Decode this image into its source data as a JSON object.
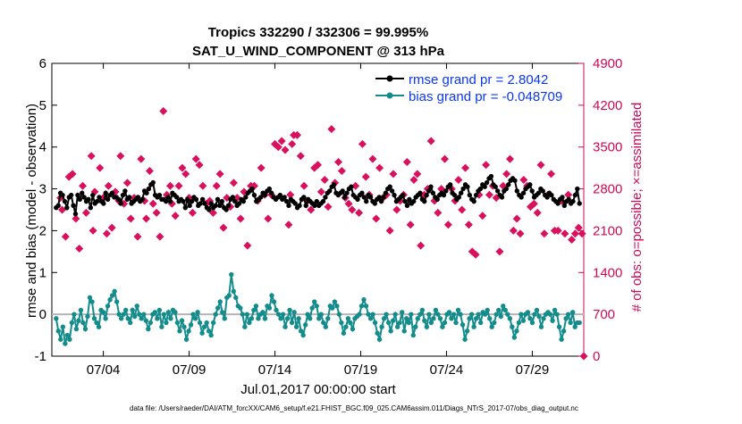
{
  "chart_data": {
    "type": "line",
    "title": "Tropics 332290 / 332306 = 99.995%",
    "subtitle": "SAT_U_WIND_COMPONENT @ 313 hPa",
    "xlabel": "Jul.01,2017 00:00:00 start",
    "ylabel": "rmse and bias (model - observation)",
    "ylabel_right": "# of obs: o=possible; ×=assimilated",
    "footer": "data file: /Users/raeder/DAI/ATM_forcXX/CAM6_setup/f.e21.FHIST_BGC.f09_025.CAM6assim.011/Diags_NTrS_2017-07/obs_diag_output.nc",
    "xlim": [
      0.5,
      31.5
    ],
    "ylim": [
      -1,
      6
    ],
    "ylim_right": [
      0,
      4900
    ],
    "x_ticks": [
      3.5,
      8.5,
      13.5,
      18.5,
      23.5,
      28.5
    ],
    "x_tick_labels": [
      "07/04",
      "07/09",
      "07/14",
      "07/19",
      "07/24",
      "07/29"
    ],
    "y_ticks": [
      -1,
      0,
      1,
      2,
      3,
      4,
      5,
      6
    ],
    "y_ticks_right": [
      0,
      700,
      1400,
      2100,
      2800,
      3500,
      4200,
      4900
    ],
    "zero_line": 0,
    "legend_position": "top-right",
    "series": [
      {
        "name": "rmse grand pr = 2.8042",
        "color": "#000000",
        "values": [
          2.55,
          2.6,
          2.9,
          2.85,
          2.7,
          2.55,
          2.8,
          2.85,
          2.6,
          2.4,
          2.85,
          2.75,
          2.9,
          2.8,
          2.7,
          2.75,
          2.55,
          2.85,
          2.65,
          2.7,
          2.8,
          2.7,
          2.65,
          2.9,
          2.75,
          2.85,
          2.9,
          2.8,
          2.8,
          2.75,
          2.65,
          2.85,
          2.95,
          2.75,
          2.8,
          2.65,
          2.7,
          2.75,
          2.8,
          2.7,
          2.75,
          2.95,
          2.9,
          3.0,
          3.1,
          3.15,
          2.85,
          2.8,
          2.85,
          2.75,
          2.75,
          2.7,
          2.8,
          2.7,
          2.9,
          2.85,
          2.8,
          2.7,
          2.75,
          2.7,
          2.55,
          2.75,
          2.6,
          2.7,
          2.8,
          2.75,
          2.6,
          2.65,
          2.75,
          2.65,
          2.55,
          2.5,
          2.65,
          2.55,
          2.6,
          2.75,
          2.6,
          2.7,
          2.55,
          2.5,
          2.6,
          2.75,
          2.8,
          2.7,
          2.6,
          2.65,
          2.75,
          2.7,
          2.8,
          2.9,
          2.95,
          3.0,
          2.85,
          2.7,
          2.75,
          2.8,
          2.9,
          2.85,
          2.95,
          3.0,
          2.9,
          2.8,
          2.75,
          2.8,
          2.85,
          2.75,
          2.8,
          2.7,
          2.6,
          2.75,
          2.7,
          2.65,
          2.55,
          2.6,
          2.75,
          2.8,
          2.6,
          2.75,
          2.7,
          2.65,
          2.6,
          2.7,
          2.6,
          2.65,
          2.7,
          2.8,
          2.9,
          2.95,
          3.05,
          3.1,
          2.9,
          2.85,
          2.9,
          2.95,
          2.8,
          2.9,
          3.0,
          3.05,
          2.85,
          2.8,
          2.75,
          2.85,
          2.9,
          2.8,
          2.7,
          2.85,
          2.8,
          2.7,
          2.65,
          2.75,
          2.8,
          2.7,
          2.8,
          2.9,
          3.0,
          3.05,
          2.95,
          2.85,
          2.7,
          2.75,
          2.8,
          2.85,
          2.7,
          2.6,
          2.75,
          2.65,
          2.7,
          2.8,
          2.85,
          2.9,
          2.75,
          2.7,
          2.85,
          2.95,
          3.05,
          2.9,
          2.8,
          2.75,
          2.85,
          2.9,
          2.85,
          2.95,
          3.05,
          3.1,
          2.9,
          2.85,
          2.75,
          2.8,
          2.9,
          3.0,
          3.1,
          3.05,
          2.85,
          2.75,
          2.7,
          2.85,
          2.95,
          3.0,
          3.1,
          3.05,
          3.15,
          3.25,
          3.3,
          3.1,
          3.05,
          2.95,
          2.85,
          2.8,
          2.95,
          3.0,
          3.1,
          3.2,
          3.25,
          3.2,
          2.95,
          2.85,
          2.8,
          2.9,
          3.0,
          3.05,
          3.1,
          2.95,
          2.8,
          2.85,
          2.9,
          3.0,
          2.95,
          2.85,
          2.8,
          2.9,
          2.85,
          2.75,
          2.7,
          2.65,
          2.75,
          2.8,
          2.6,
          2.7,
          2.75,
          2.65,
          2.7,
          2.85,
          3.0,
          2.65
        ]
      },
      {
        "name": "bias grand pr = -0.048709",
        "color": "#148c8c",
        "values": [
          -0.1,
          -0.4,
          -0.6,
          -0.3,
          -0.7,
          -0.5,
          -0.6,
          -0.2,
          0.0,
          -0.35,
          -0.15,
          0.1,
          -0.2,
          -0.35,
          -0.05,
          0.4,
          0.3,
          -0.1,
          -0.2,
          -0.3,
          0.1,
          0.05,
          -0.1,
          0.2,
          0.35,
          0.45,
          0.55,
          0.3,
          0.0,
          -0.1,
          0.0,
          0.1,
          -0.1,
          -0.2,
          0.1,
          -0.05,
          0.2,
          0.0,
          -0.1,
          0.0,
          -0.15,
          -0.35,
          -0.2,
          0.0,
          0.05,
          -0.1,
          0.1,
          -0.3,
          0.0,
          -0.2,
          0.05,
          -0.1,
          0.1,
          0.05,
          -0.2,
          -0.4,
          -0.15,
          -0.3,
          -0.6,
          -0.4,
          -0.25,
          0.0,
          -0.1,
          0.05,
          -0.2,
          -0.45,
          -0.3,
          -0.2,
          -0.4,
          -0.5,
          -0.2,
          0.0,
          0.15,
          0.3,
          0.05,
          -0.1,
          0.4,
          0.45,
          0.95,
          0.55,
          0.4,
          0.2,
          0.15,
          0.0,
          -0.3,
          0.0,
          -0.2,
          -0.1,
          0.1,
          0.2,
          -0.1,
          0.0,
          0.05,
          -0.1,
          0.2,
          0.15,
          0.45,
          0.3,
          0.1,
          0.0,
          -0.1,
          0.0,
          -0.3,
          -0.1,
          0.1,
          -0.2,
          0.05,
          -0.3,
          -0.1,
          -0.4,
          -0.5,
          -0.25,
          0.0,
          -0.1,
          0.15,
          0.3,
          0.2,
          -0.1,
          0.0,
          -0.2,
          -0.3,
          -0.1,
          0.2,
          0.15,
          0.3,
          0.2,
          0.0,
          -0.2,
          -0.45,
          -0.3,
          -0.1,
          -0.2,
          -0.35,
          -0.1,
          -0.05,
          0.0,
          0.2,
          0.35,
          0.2,
          0.0,
          -0.1,
          0.0,
          -0.2,
          -0.45,
          -0.6,
          -0.3,
          -0.1,
          0.0,
          -0.2,
          -0.4,
          -0.15,
          0.0,
          -0.3,
          -0.2,
          0.05,
          -0.4,
          -0.1,
          -0.2,
          0.0,
          -0.5,
          -0.3,
          -0.1,
          0.0,
          0.1,
          -0.15,
          -0.3,
          0.0,
          -0.2,
          -0.1,
          0.1,
          0.0,
          -0.1,
          -0.3,
          -0.2,
          0.0,
          0.05,
          -0.1,
          0.0,
          -0.2,
          0.1,
          0.0,
          -0.25,
          -0.6,
          -0.4,
          -0.1,
          0.0,
          -0.3,
          -0.1,
          0.0,
          -0.2,
          0.05,
          0.0,
          0.1,
          -0.1,
          -0.3,
          -0.2,
          0.0,
          0.1,
          -0.05,
          0.2,
          0.1,
          0.0,
          -0.1,
          -0.3,
          -0.55,
          -0.4,
          -0.2,
          0.0,
          -0.15,
          0.0,
          0.05,
          -0.1,
          -0.2,
          0.0,
          0.1,
          -0.05,
          -0.3,
          -0.1,
          0.0,
          0.05,
          0.0,
          -0.15,
          0.1,
          0.0,
          -0.3,
          -0.6,
          -0.4,
          -0.1,
          0.0,
          -0.2,
          0.05,
          -0.3,
          -0.2,
          -0.2
        ]
      }
    ],
    "obs_assimilated": {
      "name": "# obs assimilated",
      "color": "#d9105e",
      "x": [
        1.0,
        1.1,
        1.3,
        1.5,
        1.7,
        1.9,
        2.1,
        2.3,
        2.5,
        2.8,
        2.9,
        3.0,
        3.3,
        3.5,
        3.7,
        3.8,
        4.0,
        4.2,
        4.4,
        4.5,
        4.7,
        4.9,
        5.1,
        5.3,
        5.5,
        5.7,
        5.9,
        6.0,
        6.2,
        6.4,
        6.6,
        6.8,
        7.0,
        7.2,
        7.4,
        7.5,
        7.7,
        7.9,
        8.1,
        8.3,
        8.5,
        8.7,
        8.9,
        9.1,
        9.3,
        9.5,
        9.7,
        9.9,
        10.1,
        10.3,
        10.5,
        10.7,
        10.9,
        11.1,
        11.3,
        11.5,
        11.7,
        11.9,
        12.1,
        12.3,
        12.5,
        12.7,
        12.9,
        13.1,
        13.3,
        13.5,
        13.7,
        13.9,
        14.1,
        14.3,
        14.4,
        14.5,
        14.6,
        14.8,
        15.0,
        15.2,
        15.4,
        15.6,
        15.8,
        16.0,
        16.2,
        16.4,
        16.6,
        16.8,
        17.0,
        17.2,
        17.4,
        17.6,
        17.8,
        18.0,
        18.2,
        18.4,
        18.6,
        18.8,
        19.0,
        19.2,
        19.4,
        19.6,
        19.8,
        20.0,
        20.2,
        20.4,
        20.6,
        20.8,
        21.0,
        21.2,
        21.4,
        21.6,
        21.8,
        22.0,
        22.2,
        22.4,
        22.6,
        22.8,
        23.0,
        23.2,
        23.4,
        23.6,
        23.8,
        24.0,
        24.2,
        24.4,
        24.6,
        24.8,
        25.0,
        25.2,
        25.4,
        25.6,
        25.8,
        26.0,
        26.2,
        26.4,
        26.6,
        26.8,
        27.0,
        27.2,
        27.4,
        27.6,
        27.8,
        28.0,
        28.2,
        28.4,
        28.6,
        28.8,
        29.0,
        29.2,
        29.4,
        29.6,
        29.8,
        30.0,
        30.2,
        30.4,
        30.6,
        30.8,
        31.0,
        31.2,
        31.4
      ],
      "y": [
        2650,
        2450,
        2000,
        3000,
        3050,
        2300,
        1800,
        2850,
        2400,
        3350,
        2100,
        2750,
        3150,
        2650,
        2050,
        2850,
        2150,
        2750,
        2600,
        3350,
        2550,
        2900,
        2300,
        2650,
        2000,
        3300,
        2600,
        2300,
        3100,
        2550,
        2400,
        2000,
        4100,
        2700,
        2850,
        2550,
        2350,
        2850,
        3150,
        3050,
        2650,
        2400,
        3300,
        3200,
        2850,
        2550,
        2600,
        2400,
        2850,
        3050,
        2150,
        2650,
        2500,
        2900,
        2650,
        2300,
        2750,
        1850,
        2850,
        2850,
        2600,
        3150,
        2700,
        2300,
        2700,
        3550,
        3500,
        3600,
        3450,
        2200,
        2700,
        3550,
        3700,
        3700,
        3350,
        2850,
        2600,
        2450,
        3150,
        3200,
        2750,
        2950,
        2500,
        3800,
        2900,
        3250,
        3100,
        2650,
        2550,
        2450,
        2850,
        2400,
        3550,
        3000,
        2700,
        3300,
        2300,
        3150,
        2650,
        2700,
        2100,
        3050,
        2450,
        2600,
        2700,
        3250,
        2200,
        2950,
        3050,
        1850,
        2700,
        2800,
        3600,
        2600,
        2400,
        2800,
        3300,
        2200,
        2800,
        2600,
        2950,
        2450,
        3150,
        2200,
        1750,
        1700,
        2700,
        2350,
        3200,
        2700,
        2850,
        2650,
        1750,
        2850,
        3050,
        3300,
        2100,
        2300,
        2050,
        2950,
        2850,
        2500,
        2550,
        2400,
        3200,
        2050,
        2700,
        3050,
        2100,
        2100,
        2600,
        2050,
        2700,
        1950,
        2050,
        2150,
        2050
      ],
      "end_marker": 0
    }
  }
}
